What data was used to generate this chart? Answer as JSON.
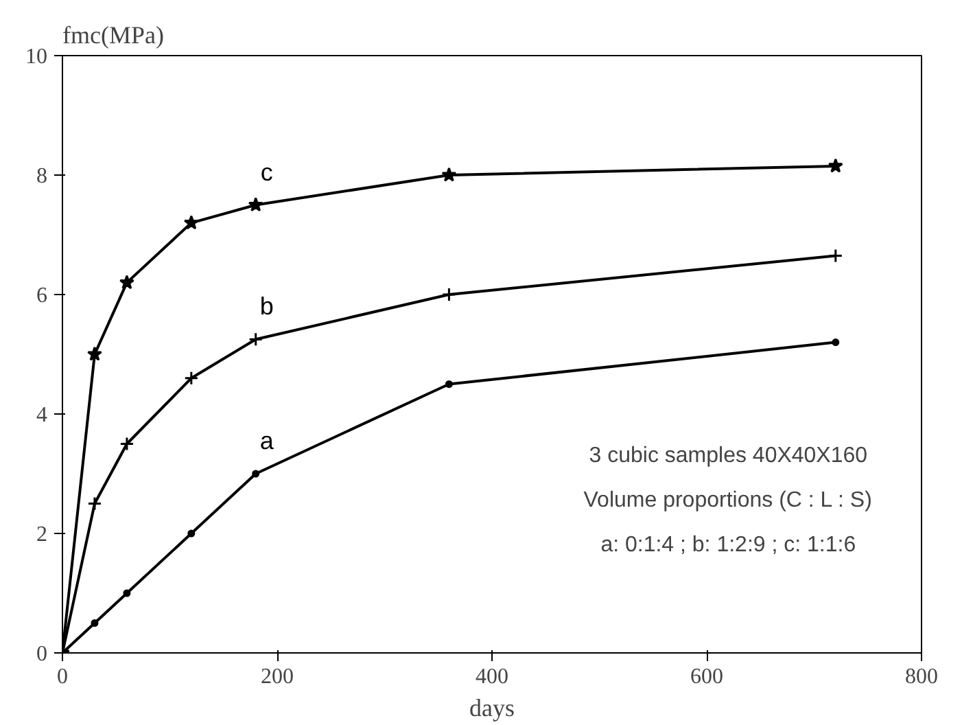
{
  "chart_data": {
    "type": "line",
    "xlabel": "days",
    "ylabel": "fmc(MPa)",
    "x": [
      0,
      30,
      60,
      120,
      180,
      360,
      720
    ],
    "xlim": [
      0,
      800
    ],
    "ylim": [
      0,
      10
    ],
    "xticks": [
      0,
      200,
      400,
      600,
      800
    ],
    "yticks": [
      0,
      2,
      4,
      6,
      8,
      10
    ],
    "grid": false,
    "line_style": "solid",
    "series": [
      {
        "name": "c",
        "color": "#000000",
        "marker": "star",
        "values": [
          0,
          5.0,
          6.2,
          7.2,
          7.5,
          8.0,
          8.15
        ]
      },
      {
        "name": "b",
        "color": "#000000",
        "marker": "cross",
        "values": [
          0,
          2.5,
          3.5,
          4.6,
          5.25,
          6.0,
          6.65
        ]
      },
      {
        "name": "a",
        "color": "#000000",
        "marker": "circle",
        "values": [
          0,
          0.5,
          1.0,
          2.0,
          3.0,
          4.5,
          5.2
        ]
      }
    ],
    "annotations": [
      "3 cubic samples 40X40X160",
      "Volume proportions (C : L : S)",
      "a: 0:1:4 ; b: 1:2:9 ; c: 1:1:6"
    ]
  }
}
